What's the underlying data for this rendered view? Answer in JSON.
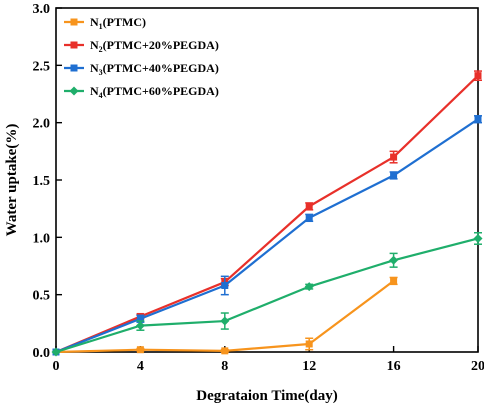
{
  "chart_data": {
    "type": "line",
    "xlabel": "Degrataion Time(day)",
    "ylabel": "Water uptake(%)",
    "xlim": [
      0,
      20
    ],
    "ylim": [
      0,
      3.0
    ],
    "xticks": [
      "0",
      "4",
      "8",
      "12",
      "16",
      "20"
    ],
    "yticks": [
      "0.0",
      "0.5",
      "1.0",
      "1.5",
      "2.0",
      "2.5",
      "3.0"
    ],
    "grid": false,
    "legend_position": "top-left",
    "series": [
      {
        "name": "N1(PTMC)",
        "label_main": "N",
        "label_sub": "1",
        "label_rest": "(PTMC)",
        "color": "#F7941D",
        "marker": "square",
        "x": [
          0,
          4,
          8,
          12,
          16
        ],
        "y": [
          0.0,
          0.02,
          0.01,
          0.07,
          0.62
        ],
        "err": [
          0,
          0.01,
          0.01,
          0.05,
          0.03
        ]
      },
      {
        "name": "N2(PTMC+20%PEGDA)",
        "label_main": "N",
        "label_sub": "2",
        "label_rest": "(PTMC+20%PEGDA)",
        "color": "#E8302A",
        "marker": "square",
        "x": [
          0,
          4,
          8,
          12,
          16,
          20
        ],
        "y": [
          0.0,
          0.31,
          0.61,
          1.27,
          1.7,
          2.41
        ],
        "err": [
          0,
          0.02,
          0.03,
          0.03,
          0.05,
          0.04
        ]
      },
      {
        "name": "N3(PTMC+40%PEGDA)",
        "label_main": "N",
        "label_sub": "3",
        "label_rest": "(PTMC+40%PEGDA)",
        "color": "#1F6FD1",
        "marker": "square",
        "x": [
          0,
          4,
          8,
          12,
          16,
          20
        ],
        "y": [
          0.0,
          0.29,
          0.58,
          1.17,
          1.54,
          2.03
        ],
        "err": [
          0,
          0.03,
          0.08,
          0.03,
          0.03,
          0.03
        ]
      },
      {
        "name": "N4(PTMC+60%PEGDA)",
        "label_main": "N",
        "label_sub": "4",
        "label_rest": "(PTMC+60%PEGDA)",
        "color": "#1FAE6B",
        "marker": "diamond",
        "x": [
          0,
          4,
          8,
          12,
          16,
          20
        ],
        "y": [
          0.0,
          0.23,
          0.27,
          0.57,
          0.8,
          0.99
        ],
        "err": [
          0,
          0.04,
          0.07,
          0.02,
          0.06,
          0.05
        ]
      }
    ]
  }
}
